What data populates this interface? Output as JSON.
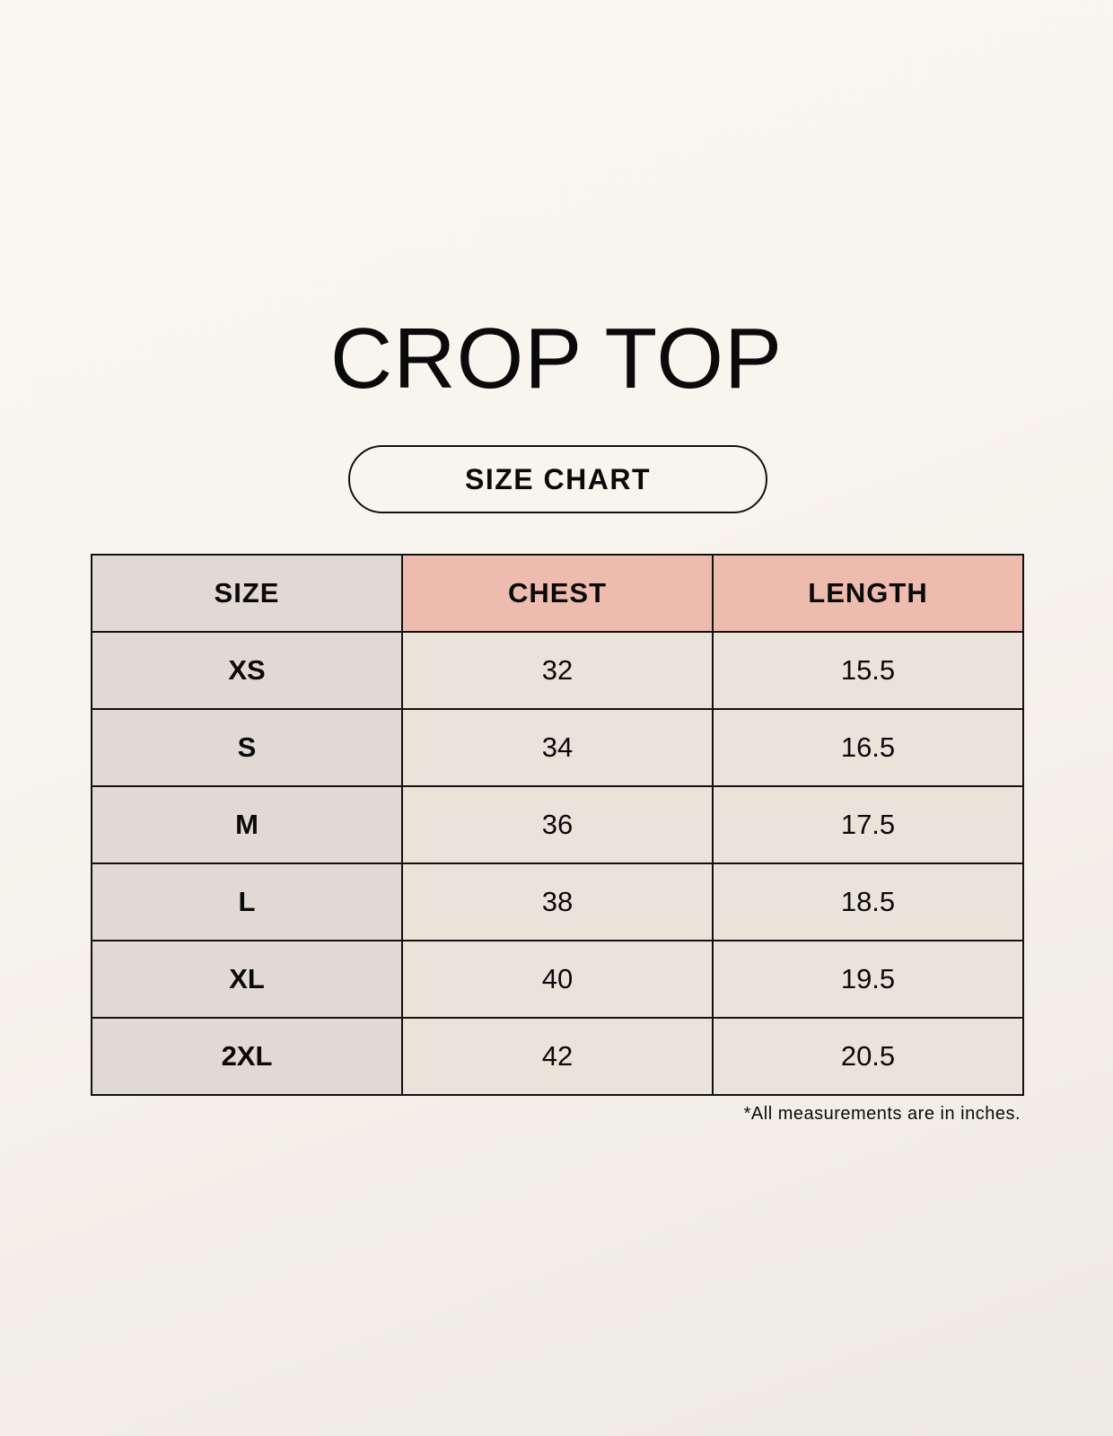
{
  "title": "CROP TOP",
  "subtitle": "SIZE CHART",
  "table": {
    "headers": [
      "SIZE",
      "CHEST",
      "LENGTH"
    ],
    "rows": [
      [
        "XS",
        "32",
        "15.5"
      ],
      [
        "S",
        "34",
        "16.5"
      ],
      [
        "M",
        "36",
        "17.5"
      ],
      [
        "L",
        "38",
        "18.5"
      ],
      [
        "XL",
        "40",
        "19.5"
      ],
      [
        "2XL",
        "42",
        "20.5"
      ]
    ]
  },
  "footnote": "*All measurements are in inches.",
  "colors": {
    "size_column": "#e0d9d4",
    "header_accent": "#edbcaf",
    "value_cells": "#eae3da"
  }
}
